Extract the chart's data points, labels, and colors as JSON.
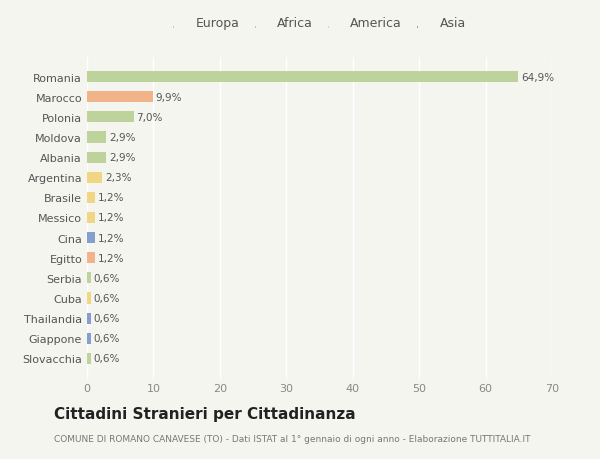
{
  "countries": [
    "Romania",
    "Marocco",
    "Polonia",
    "Moldova",
    "Albania",
    "Argentina",
    "Brasile",
    "Messico",
    "Cina",
    "Egitto",
    "Serbia",
    "Cuba",
    "Thailandia",
    "Giappone",
    "Slovacchia"
  ],
  "values": [
    64.9,
    9.9,
    7.0,
    2.9,
    2.9,
    2.3,
    1.2,
    1.2,
    1.2,
    1.2,
    0.6,
    0.6,
    0.6,
    0.6,
    0.6
  ],
  "labels": [
    "64,9%",
    "9,9%",
    "7,0%",
    "2,9%",
    "2,9%",
    "2,3%",
    "1,2%",
    "1,2%",
    "1,2%",
    "1,2%",
    "0,6%",
    "0,6%",
    "0,6%",
    "0,6%",
    "0,6%"
  ],
  "continents": [
    "Europa",
    "Africa",
    "Europa",
    "Europa",
    "Europa",
    "America",
    "America",
    "America",
    "Asia",
    "Africa",
    "Europa",
    "America",
    "Asia",
    "Asia",
    "Europa"
  ],
  "continent_colors": {
    "Europa": "#b5cc8e",
    "Africa": "#f0a878",
    "America": "#f0d070",
    "Asia": "#7090c8"
  },
  "xlim": [
    0,
    70
  ],
  "xticks": [
    0,
    10,
    20,
    30,
    40,
    50,
    60,
    70
  ],
  "title": "Cittadini Stranieri per Cittadinanza",
  "subtitle": "COMUNE DI ROMANO CANAVESE (TO) - Dati ISTAT al 1° gennaio di ogni anno - Elaborazione TUTTITALIA.IT",
  "background_color": "#f5f5f0",
  "bar_height": 0.55,
  "label_fontsize": 7.5,
  "tick_fontsize": 8,
  "legend_fontsize": 9,
  "title_fontsize": 11,
  "subtitle_fontsize": 6.5
}
